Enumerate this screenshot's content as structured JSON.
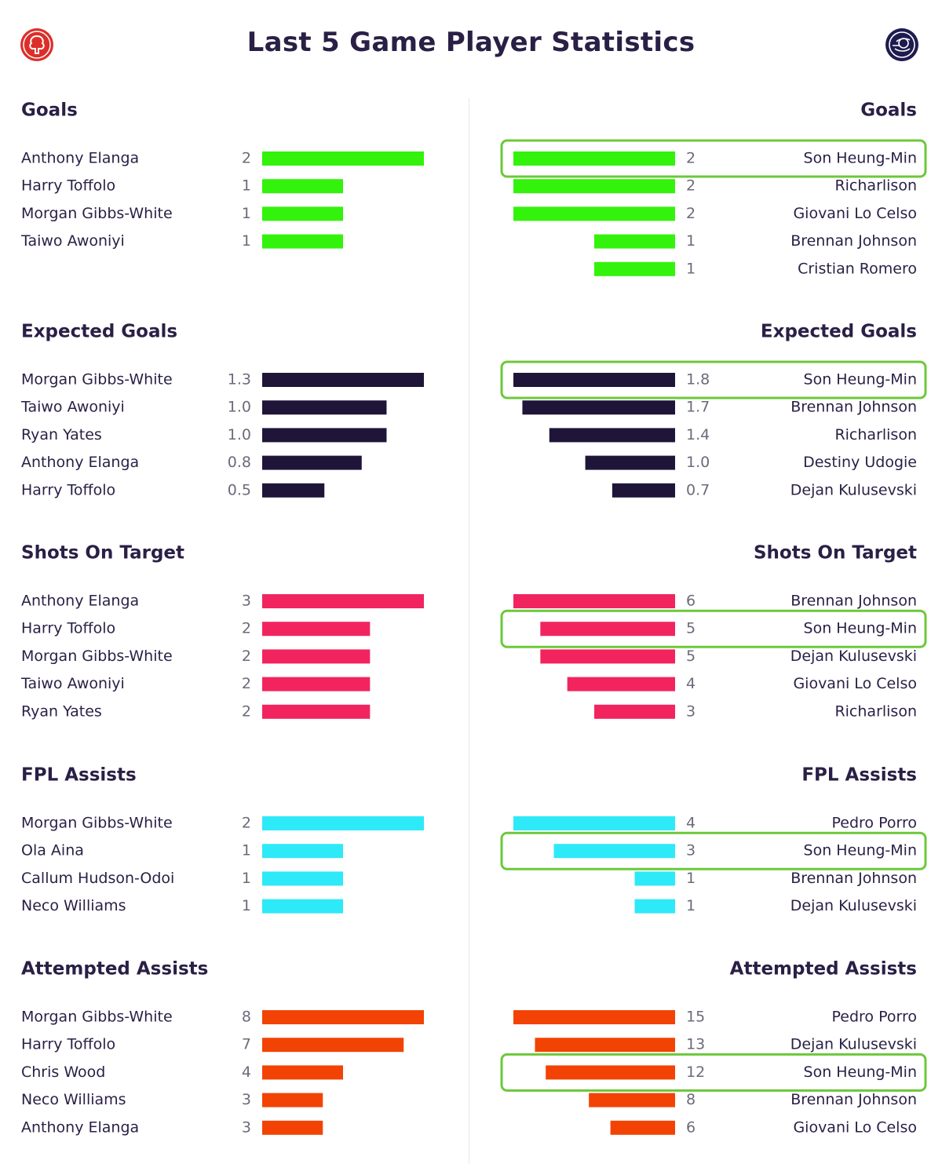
{
  "page": {
    "title": "Last 5 Game Player Statistics"
  },
  "logos": {
    "left": "nottingham-forest-crest",
    "right": "tottenham-hotspur-crest"
  },
  "colors": {
    "text": "#2a1f45",
    "value": "#6b6b7b",
    "highlight": "#6cc83a"
  },
  "chart_data": [
    {
      "type": "bar",
      "side": "left",
      "title": "Goals",
      "color": "#33f20b",
      "categories": [
        "Anthony Elanga",
        "Harry Toffolo",
        "Morgan Gibbs-White",
        "Taiwo Awoniyi"
      ],
      "values": [
        "2",
        "1",
        "1",
        "1"
      ]
    },
    {
      "type": "bar",
      "side": "right",
      "title": "Goals",
      "color": "#33f20b",
      "categories": [
        "Son Heung-Min",
        "Richarlison",
        "Giovani Lo Celso",
        "Brennan Johnson",
        "Cristian Romero"
      ],
      "values": [
        "2",
        "2",
        "2",
        "1",
        "1"
      ],
      "highlight": "Son Heung-Min"
    },
    {
      "type": "bar",
      "side": "left",
      "title": "Expected Goals",
      "color": "#1f1538",
      "categories": [
        "Morgan Gibbs-White",
        "Taiwo Awoniyi",
        "Ryan Yates",
        "Anthony Elanga",
        "Harry Toffolo"
      ],
      "values": [
        "1.3",
        "1.0",
        "1.0",
        "0.8",
        "0.5"
      ]
    },
    {
      "type": "bar",
      "side": "right",
      "title": "Expected Goals",
      "color": "#1f1538",
      "categories": [
        "Son Heung-Min",
        "Brennan Johnson",
        "Richarlison",
        "Destiny Udogie",
        "Dejan Kulusevski"
      ],
      "values": [
        "1.8",
        "1.7",
        "1.4",
        "1.0",
        "0.7"
      ],
      "highlight": "Son Heung-Min"
    },
    {
      "type": "bar",
      "side": "left",
      "title": "Shots On Target",
      "color": "#f2245f",
      "categories": [
        "Anthony Elanga",
        "Harry Toffolo",
        "Morgan Gibbs-White",
        "Taiwo Awoniyi",
        "Ryan Yates"
      ],
      "values": [
        "3",
        "2",
        "2",
        "2",
        "2"
      ]
    },
    {
      "type": "bar",
      "side": "right",
      "title": "Shots On Target",
      "color": "#f2245f",
      "categories": [
        "Brennan Johnson",
        "Son Heung-Min",
        "Dejan Kulusevski",
        "Giovani Lo Celso",
        "Richarlison"
      ],
      "values": [
        "6",
        "5",
        "5",
        "4",
        "3"
      ],
      "highlight": "Son Heung-Min"
    },
    {
      "type": "bar",
      "side": "left",
      "title": "FPL Assists",
      "color": "#2ee9f8",
      "categories": [
        "Morgan Gibbs-White",
        "Ola Aina",
        "Callum Hudson-Odoi",
        "Neco Williams"
      ],
      "values": [
        "2",
        "1",
        "1",
        "1"
      ]
    },
    {
      "type": "bar",
      "side": "right",
      "title": "FPL Assists",
      "color": "#2ee9f8",
      "categories": [
        "Pedro Porro",
        "Son Heung-Min",
        "Brennan Johnson",
        "Dejan Kulusevski"
      ],
      "values": [
        "4",
        "3",
        "1",
        "1"
      ],
      "highlight": "Son Heung-Min"
    },
    {
      "type": "bar",
      "side": "left",
      "title": "Attempted Assists",
      "color": "#f24305",
      "categories": [
        "Morgan Gibbs-White",
        "Harry Toffolo",
        "Chris Wood",
        "Neco Williams",
        "Anthony Elanga"
      ],
      "values": [
        "8",
        "7",
        "4",
        "3",
        "3"
      ]
    },
    {
      "type": "bar",
      "side": "right",
      "title": "Attempted Assists",
      "color": "#f24305",
      "categories": [
        "Pedro Porro",
        "Dejan Kulusevski",
        "Son Heung-Min",
        "Brennan Johnson",
        "Giovani Lo Celso"
      ],
      "values": [
        "15",
        "13",
        "12",
        "8",
        "6"
      ],
      "highlight": "Son Heung-Min"
    }
  ]
}
